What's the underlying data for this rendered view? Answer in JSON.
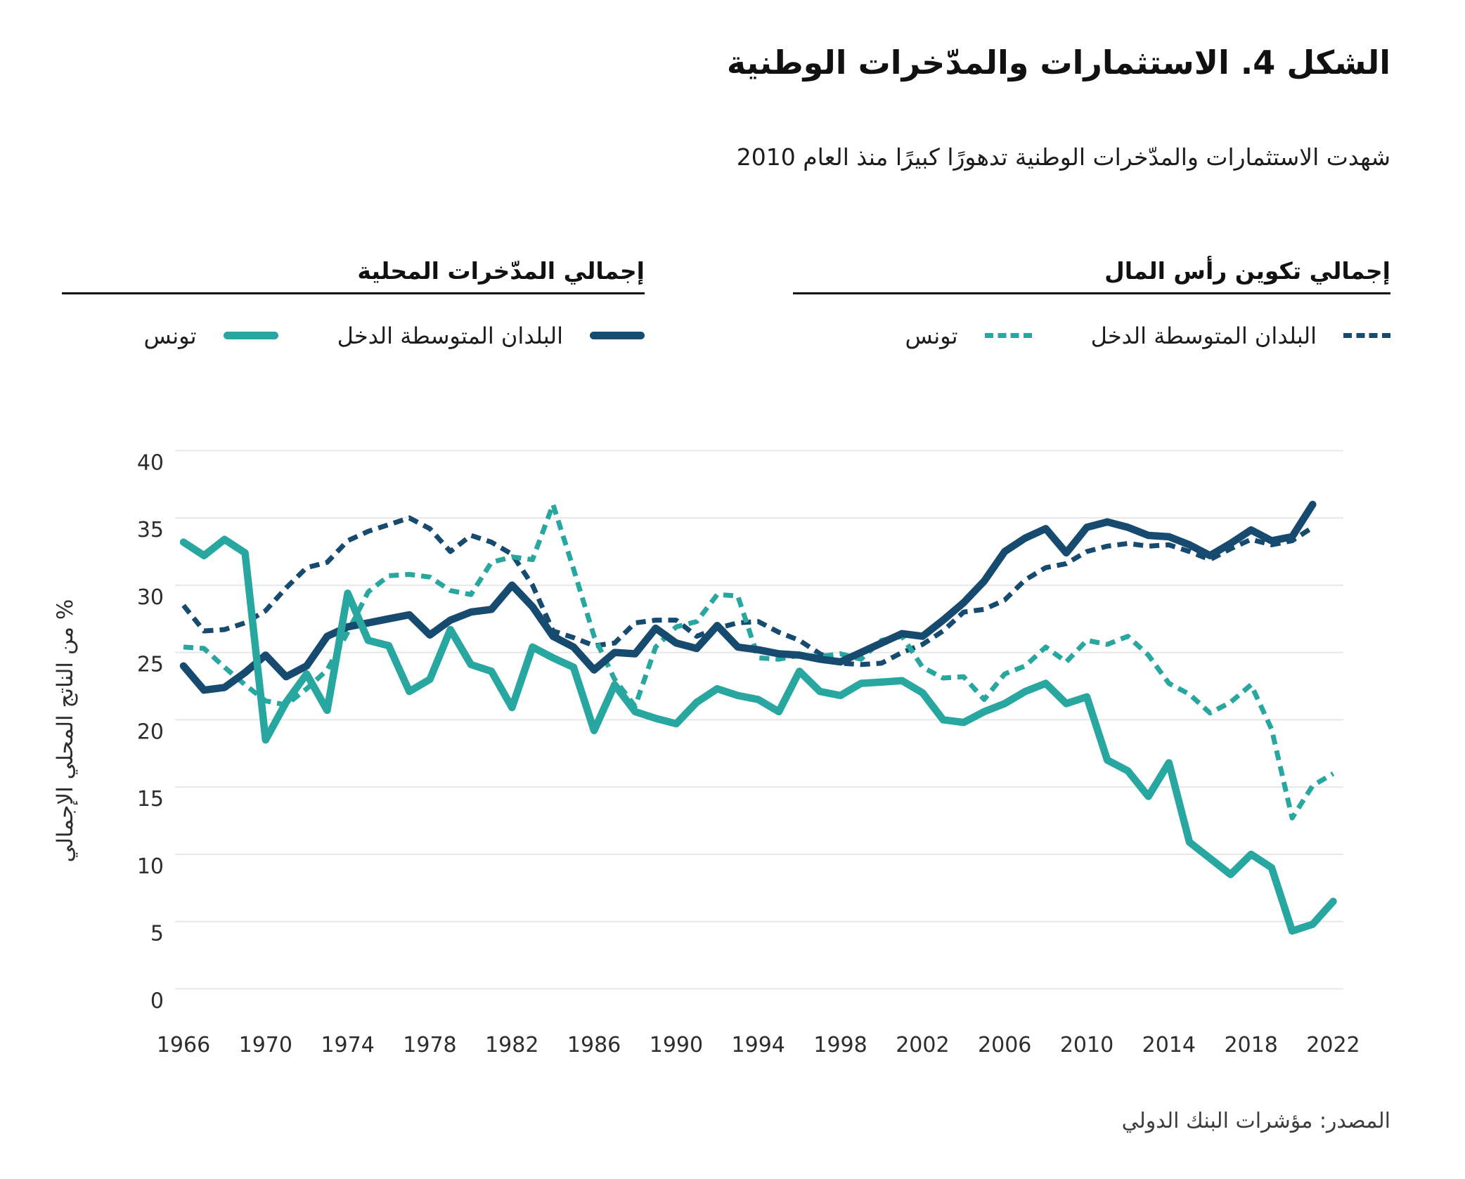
{
  "header": {
    "title": "الشكل 4. الاستثمارات والمدّخرات الوطنية",
    "subtitle": "شهدت الاستثمارات والمدّخرات الوطنية تدهورًا كبيرًا منذ العام 2010"
  },
  "legend": {
    "capital": {
      "title": "إجمالي تكوين رأس المال",
      "items": [
        {
          "label": "تونس",
          "style": "dashed",
          "color": "#27a79f"
        },
        {
          "label": "البلدان المتوسطة الدخل",
          "style": "dashed",
          "color": "#164a6e"
        }
      ]
    },
    "savings": {
      "title": "إجمالي المدّخرات المحلية",
      "items": [
        {
          "label": "تونس",
          "style": "solid",
          "color": "#27a79f"
        },
        {
          "label": "البلدان المتوسطة الدخل",
          "style": "solid",
          "color": "#164a6e"
        }
      ]
    }
  },
  "source": "المصدر: مؤشرات البنك الدولي",
  "chart_data": {
    "type": "line",
    "title": "الشكل 4. الاستثمارات والمدّخرات الوطنية",
    "xlabel": "",
    "ylabel": "% من الناتج المحلي الإجمالي",
    "ylim": [
      0,
      40
    ],
    "xlim": [
      1966,
      2022
    ],
    "y_ticks": [
      0,
      5,
      10,
      15,
      20,
      25,
      30,
      35,
      40
    ],
    "x_ticks": [
      1966,
      1970,
      1974,
      1978,
      1982,
      1986,
      1990,
      1994,
      1998,
      2002,
      2006,
      2010,
      2014,
      2018,
      2022
    ],
    "grid": true,
    "legend_position": "top",
    "years": [
      1966,
      1967,
      1968,
      1969,
      1970,
      1971,
      1972,
      1973,
      1974,
      1975,
      1976,
      1977,
      1978,
      1979,
      1980,
      1981,
      1982,
      1983,
      1984,
      1985,
      1986,
      1987,
      1988,
      1989,
      1990,
      1991,
      1992,
      1993,
      1994,
      1995,
      1996,
      1997,
      1998,
      1999,
      2000,
      2001,
      2002,
      2003,
      2004,
      2005,
      2006,
      2007,
      2008,
      2009,
      2010,
      2011,
      2012,
      2013,
      2014,
      2015,
      2016,
      2017,
      2018,
      2019,
      2020,
      2021,
      2022
    ],
    "series": [
      {
        "name": "gcf_middle_income",
        "label": "البلدان المتوسطة الدخل",
        "group": "إجمالي تكوين رأس المال",
        "style": "dashed",
        "color": "#164a6e",
        "values": [
          28.5,
          26.6,
          26.7,
          27.2,
          28.1,
          29.8,
          31.3,
          31.7,
          33.3,
          34.0,
          34.5,
          35.0,
          34.2,
          32.5,
          33.7,
          33.2,
          32.3,
          30.0,
          26.6,
          26.1,
          25.5,
          25.7,
          27.2,
          27.4,
          27.4,
          26.2,
          26.8,
          27.2,
          27.3,
          26.5,
          25.9,
          24.9,
          24.2,
          24.1,
          24.2,
          25.0,
          25.6,
          26.6,
          28.0,
          28.2,
          28.9,
          30.4,
          31.3,
          31.6,
          32.5,
          32.9,
          33.1,
          32.9,
          33.0,
          32.5,
          31.9,
          32.7,
          33.4,
          33.0,
          33.3,
          34.3,
          null
        ]
      },
      {
        "name": "gcf_tunisia",
        "label": "تونس",
        "group": "إجمالي تكوين رأس المال",
        "style": "dashed",
        "color": "#27a79f",
        "values": [
          25.4,
          25.3,
          23.9,
          22.6,
          21.4,
          21.1,
          22.3,
          23.7,
          26.5,
          29.5,
          30.7,
          30.8,
          30.6,
          29.6,
          29.3,
          31.7,
          32.1,
          31.9,
          36.0,
          31.2,
          26.2,
          23.0,
          21.0,
          25.4,
          26.9,
          27.3,
          29.3,
          29.2,
          24.6,
          24.5,
          24.8,
          24.7,
          24.9,
          24.5,
          25.9,
          26.2,
          23.9,
          23.1,
          23.2,
          21.5,
          23.4,
          24.0,
          25.4,
          24.3,
          25.9,
          25.6,
          26.2,
          24.8,
          22.7,
          21.9,
          20.5,
          21.3,
          22.6,
          19.3,
          12.7,
          15.1,
          16.0
        ]
      },
      {
        "name": "savings_middle_income",
        "label": "البلدان المتوسطة الدخل",
        "group": "إجمالي المدّخرات المحلية",
        "style": "solid",
        "color": "#164a6e",
        "values": [
          24.0,
          22.2,
          22.4,
          23.5,
          24.8,
          23.2,
          24.0,
          26.2,
          26.9,
          27.2,
          27.5,
          27.8,
          26.3,
          27.4,
          28.0,
          28.2,
          30.0,
          28.4,
          26.2,
          25.4,
          23.7,
          25.0,
          24.9,
          26.8,
          25.7,
          25.3,
          27.0,
          25.4,
          25.2,
          24.9,
          24.8,
          24.5,
          24.3,
          25.0,
          25.7,
          26.4,
          26.2,
          27.4,
          28.7,
          30.3,
          32.5,
          33.5,
          34.2,
          32.4,
          34.3,
          34.7,
          34.3,
          33.7,
          33.6,
          33.0,
          32.2,
          33.1,
          34.1,
          33.3,
          33.6,
          36.0,
          null
        ]
      },
      {
        "name": "savings_tunisia",
        "label": "تونس",
        "group": "إجمالي المدّخرات المحلية",
        "style": "solid",
        "color": "#27a79f",
        "values": [
          33.2,
          32.2,
          33.4,
          32.4,
          18.5,
          21.3,
          23.4,
          20.7,
          29.4,
          25.9,
          25.5,
          22.1,
          23.0,
          26.7,
          24.1,
          23.6,
          20.9,
          25.4,
          24.6,
          23.9,
          19.2,
          22.6,
          20.6,
          20.1,
          19.7,
          21.3,
          22.3,
          21.8,
          21.5,
          20.6,
          23.6,
          22.1,
          21.8,
          22.7,
          22.8,
          22.9,
          22.0,
          20.0,
          19.8,
          20.6,
          21.2,
          22.1,
          22.7,
          21.2,
          21.7,
          17.0,
          16.2,
          14.3,
          16.8,
          10.9,
          9.7,
          8.5,
          10.0,
          9.0,
          4.3,
          4.8,
          6.5
        ]
      }
    ]
  }
}
